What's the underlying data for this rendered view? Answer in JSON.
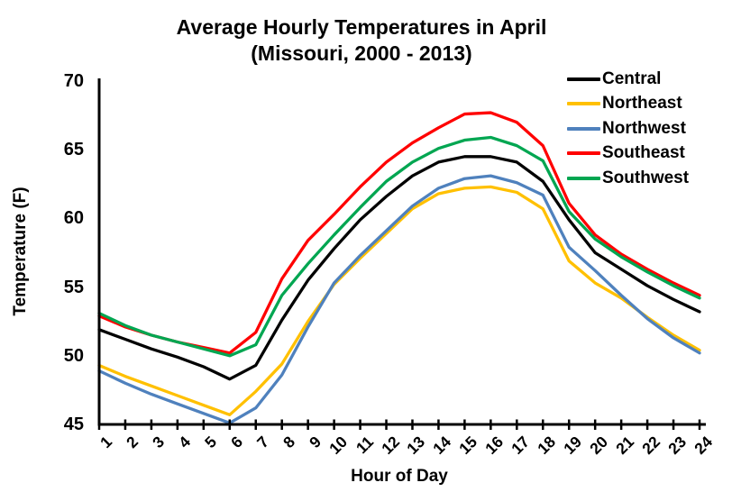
{
  "title": {
    "line1": "Average Hourly Temperatures in April",
    "line2": "(Missouri, 2000 - 2013)"
  },
  "chart_data": {
    "type": "line",
    "title": "Average Hourly Temperatures in April (Missouri, 2000 - 2013)",
    "xlabel": "Hour of Day",
    "ylabel": "Temperature (F)",
    "xlim": [
      1,
      24
    ],
    "ylim": [
      45,
      70
    ],
    "grid": false,
    "legend_position": "top-right",
    "x_ticks": [
      1,
      2,
      3,
      4,
      5,
      6,
      7,
      8,
      9,
      10,
      11,
      12,
      13,
      14,
      15,
      16,
      17,
      18,
      19,
      20,
      21,
      22,
      23,
      24
    ],
    "y_ticks": [
      45,
      50,
      55,
      60,
      65,
      70
    ],
    "x": [
      1,
      2,
      3,
      4,
      5,
      6,
      7,
      8,
      9,
      10,
      11,
      12,
      13,
      14,
      15,
      16,
      17,
      18,
      19,
      20,
      21,
      22,
      23,
      24
    ],
    "series": [
      {
        "name": "Central",
        "color": "#000000",
        "values": [
          51.9,
          51.2,
          50.5,
          49.9,
          49.2,
          48.3,
          49.3,
          52.6,
          55.5,
          57.8,
          59.9,
          61.6,
          63.1,
          64.1,
          64.5,
          64.5,
          64.1,
          62.7,
          59.9,
          57.5,
          56.3,
          55.1,
          54.1,
          53.2
        ]
      },
      {
        "name": "Northeast",
        "color": "#FFC000",
        "values": [
          49.3,
          48.5,
          47.8,
          47.1,
          46.4,
          45.7,
          47.4,
          49.4,
          52.5,
          55.2,
          57.1,
          58.9,
          60.7,
          61.8,
          62.2,
          62.3,
          61.9,
          60.7,
          56.9,
          55.3,
          54.2,
          52.8,
          51.5,
          50.4
        ]
      },
      {
        "name": "Northwest",
        "color": "#4F81BD",
        "values": [
          48.9,
          48.0,
          47.2,
          46.5,
          45.8,
          45.1,
          46.2,
          48.6,
          52.1,
          55.3,
          57.3,
          59.1,
          60.9,
          62.2,
          62.9,
          63.1,
          62.6,
          61.7,
          57.9,
          56.2,
          54.4,
          52.7,
          51.3,
          50.2
        ]
      },
      {
        "name": "Southeast",
        "color": "#FF0000",
        "values": [
          52.9,
          52.1,
          51.5,
          51.0,
          50.6,
          50.2,
          51.7,
          55.6,
          58.4,
          60.3,
          62.3,
          64.1,
          65.5,
          66.6,
          67.6,
          67.7,
          67.0,
          65.3,
          61.1,
          58.8,
          57.4,
          56.3,
          55.3,
          54.4
        ]
      },
      {
        "name": "Southwest",
        "color": "#00A651",
        "values": [
          53.1,
          52.2,
          51.5,
          51.0,
          50.5,
          50.0,
          50.8,
          54.4,
          56.7,
          58.8,
          60.8,
          62.7,
          64.1,
          65.1,
          65.7,
          65.9,
          65.3,
          64.2,
          60.5,
          58.5,
          57.2,
          56.1,
          55.1,
          54.2
        ]
      }
    ]
  }
}
